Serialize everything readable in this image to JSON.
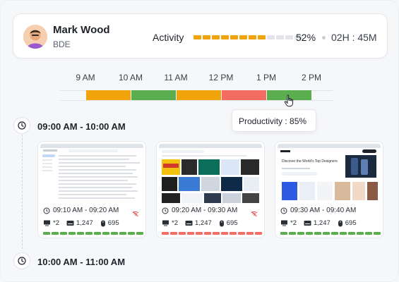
{
  "user": {
    "name": "Mark Wood",
    "role": "BDE"
  },
  "activity": {
    "label": "Activity",
    "percent_text": "52%",
    "time_text": "02H : 45M",
    "bar": [
      "#f0a30a",
      "#f0a30a",
      "#f0a30a",
      "#f0a30a",
      "#f0a30a",
      "#f0a30a",
      "#f0a30a",
      "#f0a30a",
      "#e3e5ea",
      "#e3e5ea",
      "#e3e5ea",
      "#e3e5ea"
    ]
  },
  "timeline": {
    "hours": [
      "9 AM",
      "10 AM",
      "11 AM",
      "12 PM",
      "1 PM",
      "2 PM"
    ],
    "segment_colors": [
      "#f0a30a",
      "#5aae4e",
      "#f0a30a",
      "#f46b62",
      "#5aae4e"
    ],
    "tooltip": "Productivity :  85%"
  },
  "groups": [
    {
      "range": "09:00 AM - 10:00 AM"
    },
    {
      "range": "10:00 AM - 11:00 AM"
    }
  ],
  "shots": [
    {
      "time": "09:10 AM - 09:20 AM",
      "screens": "*2",
      "keys": "1,247",
      "clicks": "695",
      "bar_color": "#5aae4e"
    },
    {
      "time": "09:20 AM - 09:30 AM",
      "screens": "*2",
      "keys": "1,247",
      "clicks": "695",
      "bar_color": "#f46b62"
    },
    {
      "time": "09:30 AM - 09:40 AM",
      "screens": "*2",
      "keys": "1,247",
      "clicks": "695",
      "bar_color": "#5aae4e"
    }
  ],
  "thumb_texts": {
    "dribbble_headline": "Discover the World's Top Designers"
  }
}
